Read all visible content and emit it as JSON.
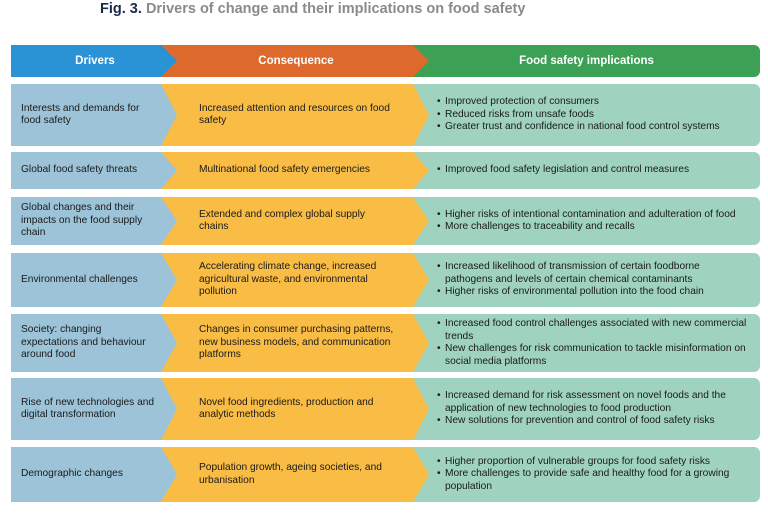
{
  "figure": {
    "label": "Fig. 3.",
    "title": "Drivers of change and their implications on food safety"
  },
  "headers": {
    "drivers": "Drivers",
    "consequence": "Consequence",
    "implications": "Food safety implications"
  },
  "colors": {
    "drivers_header": "#2a93d5",
    "consequence_header": "#dd6a2c",
    "implications_header": "#3ca154",
    "drivers_body": "#9cc3d8",
    "consequence_body": "#f9bc45",
    "implications_body": "#9fd3bf"
  },
  "rows": [
    {
      "driver": "Interests and demands for food safety",
      "consequence": "Increased attention and resources on food safety",
      "implications": [
        "Improved protection of consumers",
        "Reduced risks from unsafe foods",
        "Greater trust and confidence in national food control systems"
      ]
    },
    {
      "driver": "Global food safety threats",
      "consequence": "Multinational food safety emergencies",
      "implications": [
        "Improved food safety legislation and control measures"
      ]
    },
    {
      "driver": "Global changes and their impacts on the food supply chain",
      "consequence": "Extended and complex global supply chains",
      "implications": [
        "Higher risks of intentional contamination and adulteration of food",
        "More challenges to  traceability and recalls"
      ]
    },
    {
      "driver": "Environmental challenges",
      "consequence": "Accelerating climate change, increased agricultural waste, and environmental pollution",
      "implications": [
        "Increased likelihood of transmission of certain foodborne pathogens and levels of certain chemical contaminants",
        "Higher risks of environmental pollution into the food chain"
      ]
    },
    {
      "driver": "Society: changing expectations and behaviour around food",
      "consequence": "Changes in consumer purchasing patterns, new business models, and communication platforms",
      "implications": [
        "Increased food control challenges associated with new  commercial trends",
        "New challenges for risk communication to tackle misinformation on social media platforms"
      ]
    },
    {
      "driver": "Rise of new technologies and digital transformation",
      "consequence": "Novel food ingredients, production and analytic methods",
      "implications": [
        "Increased demand for risk assessment on novel foods and the application of new technologies to food production",
        "New solutions for prevention and control of food safety risks"
      ]
    },
    {
      "driver": "Demographic changes",
      "consequence": "Population growth, ageing societies, and urbanisation",
      "implications": [
        "Higher proportion of vulnerable groups for food safety risks",
        "More challenges to provide safe and healthy food for a growing population"
      ]
    }
  ]
}
